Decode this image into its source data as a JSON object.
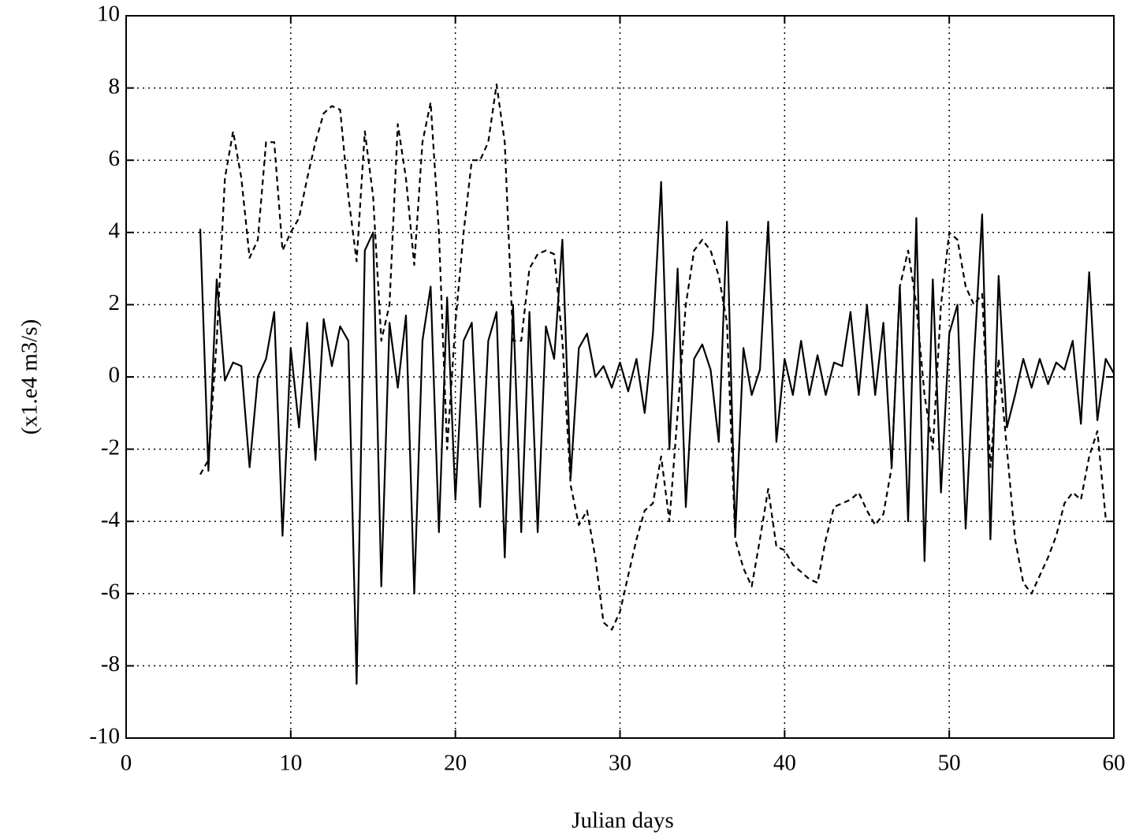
{
  "chart_data": {
    "type": "line",
    "xlabel": "Julian days",
    "ylabel": "(x1.e4 m3/s)",
    "x": [
      4,
      4.5,
      5,
      5.5,
      6,
      6.5,
      7,
      7.5,
      8,
      8.5,
      9,
      9.5,
      10,
      10.5,
      11,
      11.5,
      12,
      12.5,
      13,
      13.5,
      14,
      14.5,
      15,
      15.5,
      16,
      16.5,
      17,
      17.5,
      18,
      18.5,
      19,
      19.5,
      20,
      20.5,
      21,
      21.5,
      22,
      22.5,
      23,
      23.5,
      24,
      24.5,
      25,
      25.5,
      26,
      26.5,
      27,
      27.5,
      28,
      28.5,
      29,
      29.5,
      30,
      30.5,
      31,
      31.5,
      32,
      32.5,
      33,
      33.5,
      34,
      34.5,
      35,
      35.5,
      36,
      36.5,
      37,
      37.5,
      38,
      38.5,
      39,
      39.5,
      40,
      40.5,
      41,
      41.5,
      42,
      42.5,
      43,
      43.5,
      44,
      44.5,
      45,
      45.5,
      46,
      46.5,
      47,
      47.5,
      48,
      48.5,
      49,
      49.5,
      50,
      50.5,
      51,
      51.5,
      52,
      52.5,
      53,
      53.5,
      54,
      54.5,
      55,
      55.5,
      56,
      56.5,
      57,
      57.5,
      58,
      58.5,
      59,
      59.5,
      60
    ],
    "series": [
      {
        "color": "#000000",
        "dashed": false,
        "values": [
          null,
          4.1,
          -2.6,
          2.7,
          -0.1,
          0.4,
          0.3,
          -2.5,
          0.0,
          0.5,
          1.8,
          -4.4,
          0.8,
          -1.4,
          1.5,
          -2.3,
          1.6,
          0.3,
          1.4,
          1.0,
          -8.5,
          3.5,
          4.0,
          -5.8,
          1.5,
          -0.3,
          1.7,
          -6.0,
          1.0,
          2.5,
          -4.3,
          2.2,
          -3.4,
          1.0,
          1.5,
          -3.6,
          1.0,
          1.8,
          -5.0,
          2.0,
          -4.3,
          1.8,
          -4.3,
          1.4,
          0.5,
          3.8,
          -2.8,
          0.8,
          1.2,
          0.0,
          0.3,
          -0.3,
          0.4,
          -0.4,
          0.5,
          -1.0,
          1.2,
          5.4,
          -2.0,
          3.0,
          -3.6,
          0.5,
          0.9,
          0.2,
          -1.8,
          4.3,
          -4.4,
          0.8,
          -0.5,
          0.2,
          4.3,
          -1.8,
          0.5,
          -0.5,
          1.0,
          -0.5,
          0.6,
          -0.5,
          0.4,
          0.3,
          1.8,
          -0.5,
          2.0,
          -0.5,
          1.5,
          -2.5,
          2.5,
          -4.0,
          4.4,
          -5.1,
          2.7,
          -3.2,
          1.2,
          2.0,
          -4.2,
          0.5,
          4.5,
          -4.5,
          2.8,
          -1.4,
          -0.5,
          0.5,
          -0.3,
          0.5,
          -0.2,
          0.4,
          0.2,
          1.0,
          -1.3,
          2.9,
          -1.2,
          0.5,
          0.1
        ]
      },
      {
        "color": "#000000",
        "dashed": true,
        "values": [
          null,
          -2.7,
          -2.3,
          1.0,
          5.5,
          6.8,
          5.5,
          3.3,
          3.8,
          6.5,
          6.5,
          3.5,
          4.0,
          4.4,
          5.5,
          6.5,
          7.3,
          7.5,
          7.4,
          5.0,
          3.2,
          6.8,
          5.0,
          1.0,
          2.0,
          7.0,
          5.5,
          3.1,
          6.5,
          7.6,
          4.0,
          -2.0,
          1.5,
          4.0,
          6.0,
          6.0,
          6.5,
          8.1,
          6.5,
          1.0,
          1.0,
          3.0,
          3.4,
          3.5,
          3.4,
          1.0,
          -3.0,
          -4.1,
          -3.7,
          -5.0,
          -6.8,
          -7.0,
          -6.5,
          -5.5,
          -4.5,
          -3.7,
          -3.5,
          -2.2,
          -4.0,
          -1.0,
          2.0,
          3.5,
          3.8,
          3.5,
          2.8,
          1.5,
          -4.5,
          -5.3,
          -5.8,
          -4.5,
          -3.1,
          -4.7,
          -4.8,
          -5.2,
          -5.4,
          -5.6,
          -5.7,
          -4.5,
          -3.6,
          -3.5,
          -3.4,
          -3.2,
          -3.7,
          -4.1,
          -3.8,
          -2.5,
          2.5,
          3.5,
          2.0,
          -0.5,
          -2.0,
          2.0,
          4.0,
          3.8,
          2.5,
          2.0,
          2.3,
          -2.5,
          0.5,
          -2.0,
          -4.5,
          -5.7,
          -6.0,
          -5.5,
          -5.0,
          -4.4,
          -3.5,
          -3.2,
          -3.4,
          -2.2,
          -1.5,
          -3.9,
          null
        ]
      }
    ],
    "xlim": [
      0,
      60
    ],
    "xticks": [
      0,
      10,
      20,
      30,
      40,
      50,
      60
    ],
    "ylim": [
      -10,
      10
    ],
    "yticks": [
      -10,
      -8,
      -6,
      -4,
      -2,
      0,
      2,
      4,
      6,
      8,
      10
    ],
    "grid": true
  }
}
